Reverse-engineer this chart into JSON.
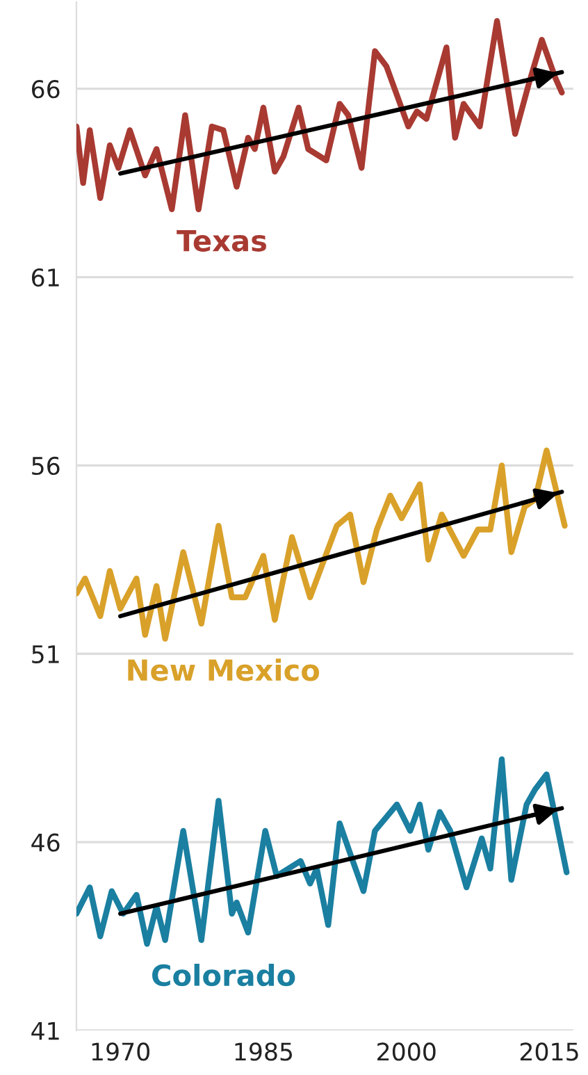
{
  "chart_data": {
    "type": "line",
    "ylim": [
      41,
      68.3
    ],
    "yticks": [
      41,
      46,
      51,
      56,
      61,
      66
    ],
    "xlim": [
      1965.4,
      2017.5
    ],
    "xticks": [
      1970,
      1985,
      2000,
      2015
    ],
    "grid": "y",
    "marker": "none",
    "line_style": "solid",
    "series": [
      {
        "name": "Texas",
        "color": "#a83a32",
        "x": [
          1965.4,
          1966.1,
          1966.8,
          1967.9,
          1968.9,
          1969.8,
          1971.0,
          1972.6,
          1973.8,
          1975.4,
          1976.8,
          1978.2,
          1979.6,
          1980.8,
          1982.2,
          1983.4,
          1984.1,
          1985.0,
          1986.2,
          1987.1,
          1988.7,
          1989.7,
          1991.6,
          1993.0,
          1993.9,
          1995.3,
          1996.7,
          1997.9,
          2000.2,
          2001.1,
          2002.1,
          2004.2,
          2005.1,
          2006.0,
          2007.7,
          2009.5,
          2011.4,
          2012.8,
          2014.2,
          2015.6,
          2016.3
        ],
        "values": [
          65.0,
          63.5,
          64.9,
          63.1,
          64.5,
          63.9,
          64.9,
          63.7,
          64.4,
          62.8,
          65.3,
          62.8,
          65.0,
          64.9,
          63.4,
          64.7,
          64.4,
          65.5,
          63.8,
          64.2,
          65.5,
          64.4,
          64.1,
          65.6,
          65.3,
          63.9,
          67.0,
          66.6,
          65.0,
          65.4,
          65.2,
          67.1,
          64.7,
          65.6,
          65.0,
          67.8,
          64.8,
          66.1,
          67.3,
          66.3,
          65.9
        ]
      },
      {
        "type": "line",
        "color": "#000000",
        "x": [
          1970,
          2016.3
        ],
        "values": [
          63.75,
          66.44
        ]
      },
      {
        "name": "New Mexico",
        "color": "#d9a12a",
        "x": [
          1965.4,
          1966.3,
          1967.9,
          1968.9,
          1970.0,
          1971.7,
          1972.6,
          1973.8,
          1974.7,
          1976.6,
          1978.5,
          1980.3,
          1981.7,
          1983.1,
          1985.0,
          1986.2,
          1988.0,
          1989.9,
          1992.7,
          1994.1,
          1995.5,
          1996.9,
          1998.3,
          1999.5,
          2001.4,
          2002.3,
          2003.7,
          2006.0,
          2007.5,
          2008.8,
          2010.0,
          2011.0,
          2012.4,
          2013.5,
          2014.7,
          2016.6
        ],
        "values": [
          52.6,
          53.0,
          52.0,
          53.2,
          52.2,
          53.0,
          51.5,
          52.8,
          51.4,
          53.7,
          51.8,
          54.4,
          52.5,
          52.5,
          53.6,
          51.9,
          54.1,
          52.5,
          54.4,
          54.7,
          52.9,
          54.3,
          55.2,
          54.6,
          55.5,
          53.5,
          54.7,
          53.6,
          54.3,
          54.3,
          56.0,
          53.7,
          54.9,
          55.1,
          56.4,
          54.4
        ]
      },
      {
        "type": "line",
        "color": "#000000",
        "x": [
          1970,
          2016.3
        ],
        "values": [
          52.0,
          55.3
        ]
      },
      {
        "name": "Colorado",
        "color": "#1a7fa0",
        "x": [
          1965.4,
          1966.8,
          1967.9,
          1969.1,
          1970.3,
          1971.7,
          1972.8,
          1973.8,
          1974.7,
          1976.6,
          1978.5,
          1980.3,
          1981.7,
          1982.2,
          1983.4,
          1985.2,
          1986.4,
          1988.9,
          1989.9,
          1990.6,
          1991.8,
          1993.0,
          1994.1,
          1995.5,
          1996.7,
          1999.0,
          2000.4,
          2001.4,
          2002.3,
          2003.5,
          2004.6,
          2006.3,
          2007.9,
          2008.8,
          2010.0,
          2011.0,
          2012.6,
          2013.5,
          2014.7,
          2016.8
        ],
        "values": [
          44.1,
          44.8,
          43.5,
          44.7,
          44.1,
          44.6,
          43.3,
          44.3,
          43.4,
          46.3,
          43.4,
          47.1,
          44.1,
          44.4,
          43.6,
          46.3,
          45.1,
          45.5,
          44.9,
          45.3,
          43.8,
          46.5,
          45.7,
          44.7,
          46.3,
          47.0,
          46.3,
          47.0,
          45.8,
          46.8,
          46.3,
          44.8,
          46.1,
          45.3,
          48.2,
          45.0,
          47.0,
          47.4,
          47.8,
          45.2
        ]
      },
      {
        "type": "line",
        "color": "#000000",
        "x": [
          1970,
          2016.3
        ],
        "values": [
          44.1,
          46.9
        ]
      }
    ]
  }
}
